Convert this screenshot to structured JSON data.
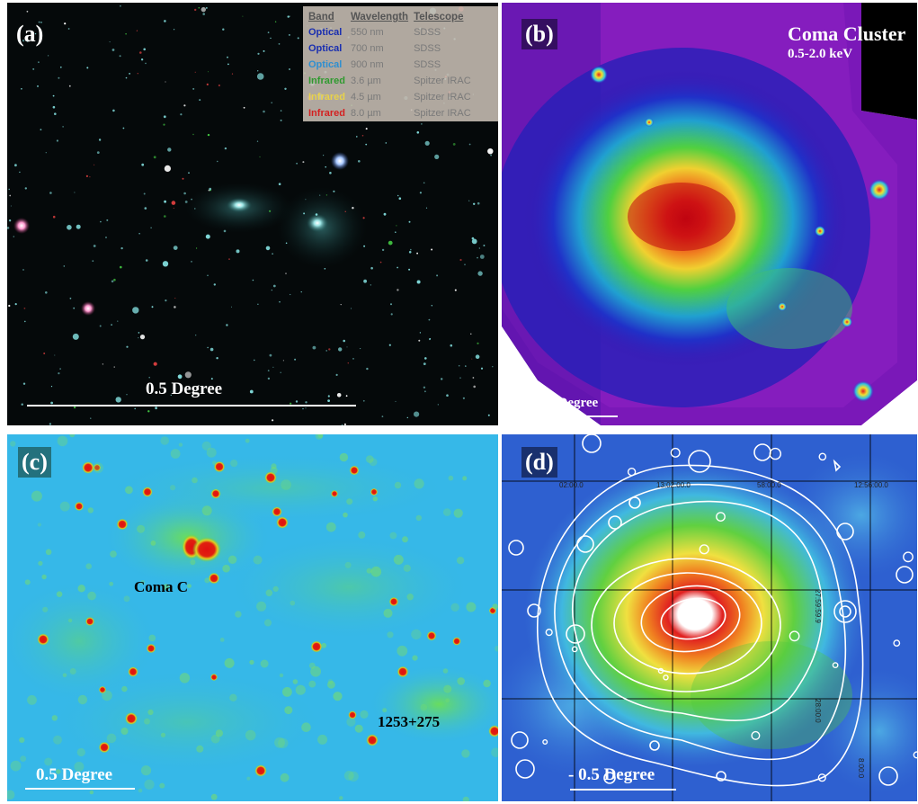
{
  "panels": {
    "a": {
      "label": "(a)",
      "scale_label": "0.5 Degree",
      "legend": {
        "headers": [
          "Band",
          "Wavelength",
          "Telescope"
        ],
        "rows": [
          {
            "band": "Optical",
            "wavelength": "550 nm",
            "telescope": "SDSS",
            "color": "#1a2fb0"
          },
          {
            "band": "Optical",
            "wavelength": "700 nm",
            "telescope": "SDSS",
            "color": "#1a2fb0"
          },
          {
            "band": "Optical",
            "wavelength": "900 nm",
            "telescope": "SDSS",
            "color": "#2f8fd0"
          },
          {
            "band": "Infrared",
            "wavelength": "3.6 µm",
            "telescope": "Spitzer IRAC",
            "color": "#2f9a2f"
          },
          {
            "band": "Infrared",
            "wavelength": "4.5 µm",
            "telescope": "Spitzer IRAC",
            "color": "#e8d24a"
          },
          {
            "band": "Infrared",
            "wavelength": "8.0 µm",
            "telescope": "Spitzer IRAC",
            "color": "#d42020"
          }
        ]
      }
    },
    "b": {
      "label": "(b)",
      "title": "Coma Cluster",
      "subtitle": "0.5-2.0 keV",
      "scale_label": "0.5 Degree"
    },
    "c": {
      "label": "(c)",
      "source_1": "Coma C",
      "source_2": "1253+275",
      "scale_label": "0.5 Degree"
    },
    "d": {
      "label": "(d)",
      "scale_label": "- 0.5 Degree",
      "grid_labels": [
        "02:00.0",
        "13:02:00.0",
        "58:00.0",
        "12:56:00.0",
        "27:59:59.9",
        "28:00:0",
        "8:00:0"
      ]
    }
  },
  "colors": {
    "panel_a_bg": "#05090a",
    "panel_b_bg": "#6a10a8",
    "panel_c_bg": "#36b8e8",
    "panel_d_bg": "#3a7ad8"
  }
}
